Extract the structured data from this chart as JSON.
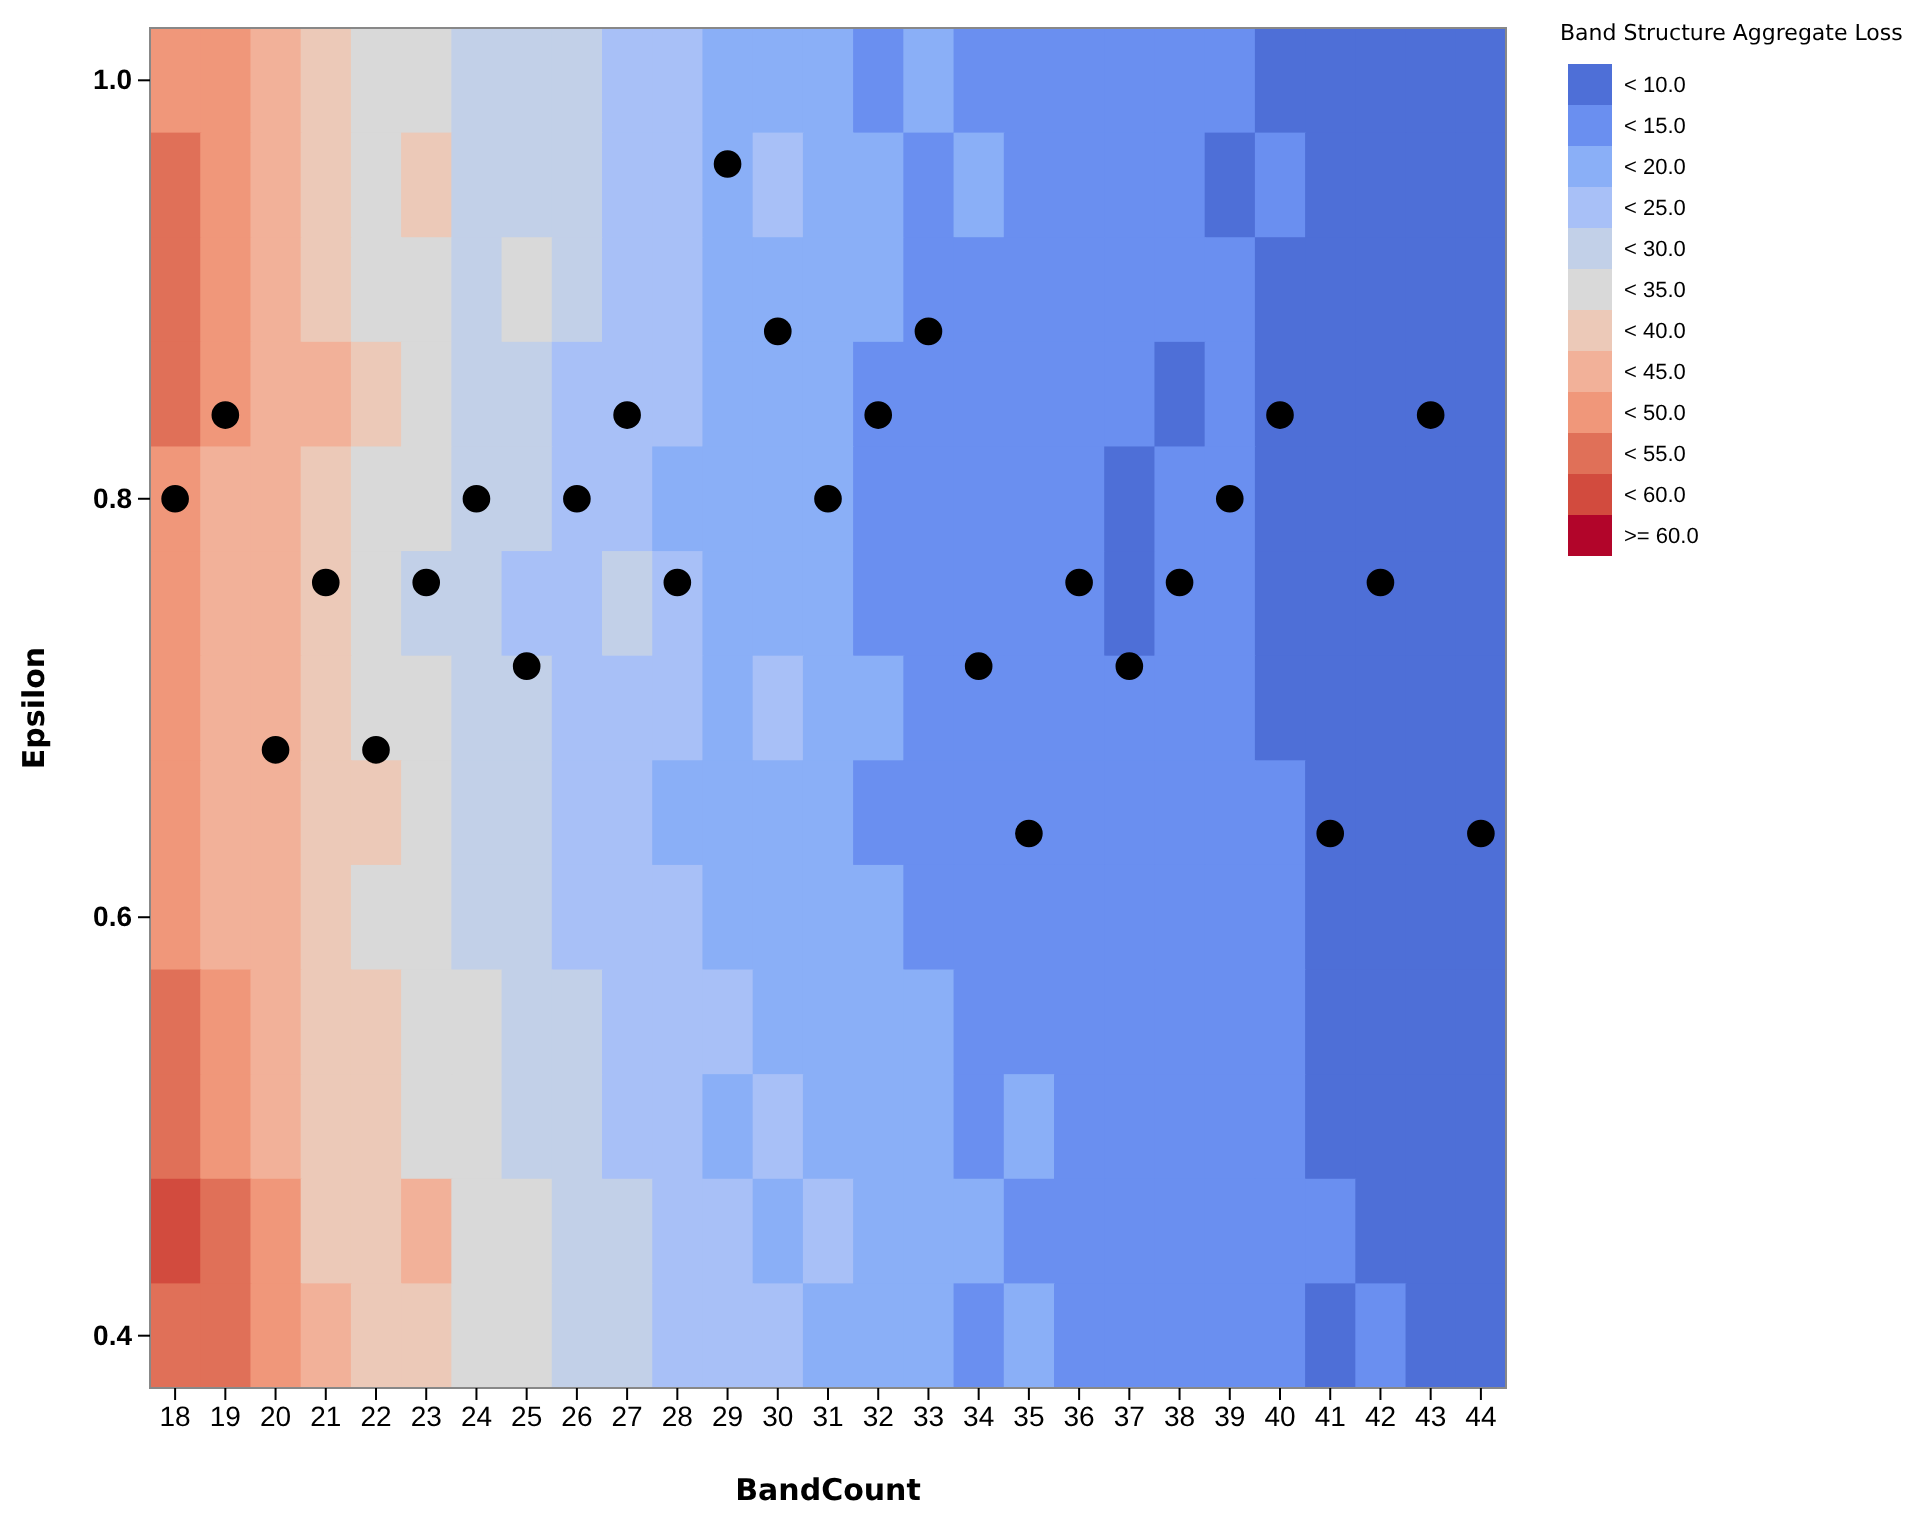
{
  "chart_data": {
    "type": "heatmap",
    "xlabel": "BandCount",
    "ylabel": "Epsilon",
    "legend_title": "Band Structure Aggregate Loss",
    "categories": [
      "18",
      "19",
      "20",
      "21",
      "22",
      "23",
      "24",
      "25",
      "26",
      "27",
      "28",
      "29",
      "30",
      "31",
      "32",
      "33",
      "34",
      "35",
      "36",
      "37",
      "38",
      "39",
      "40",
      "41",
      "42",
      "43",
      "44"
    ],
    "ylim": [
      0.375,
      1.025
    ],
    "yticks": [
      {
        "value": 0.4,
        "label": "0.4"
      },
      {
        "value": 0.6,
        "label": "0.6"
      },
      {
        "value": 0.8,
        "label": "0.8"
      },
      {
        "value": 1.0,
        "label": "1.0"
      }
    ],
    "clim": [
      5,
      65
    ],
    "cticks": [
      {
        "value": 7.5,
        "label": "< 10.0"
      },
      {
        "value": 12.5,
        "label": "< 15.0"
      },
      {
        "value": 17.5,
        "label": "< 20.0"
      },
      {
        "value": 22.5,
        "label": "< 25.0"
      },
      {
        "value": 27.5,
        "label": "< 30.0"
      },
      {
        "value": 32.5,
        "label": "< 35.0"
      },
      {
        "value": 37.5,
        "label": "< 40.0"
      },
      {
        "value": 42.5,
        "label": "< 45.0"
      },
      {
        "value": 47.5,
        "label": "< 50.0"
      },
      {
        "value": 52.5,
        "label": "< 55.0"
      },
      {
        "value": 57.5,
        "label": "< 60.0"
      },
      {
        "value": 62.5,
        "label": ">= 60.0"
      }
    ],
    "colors": [
      "#4e6fd7",
      "#6a8ff0",
      "#8aaff7",
      "#a8c0f7",
      "#c2d0e8",
      "#d9d9d9",
      "#ecc9b8",
      "#f2b199",
      "#f0977a",
      "#e07058",
      "#d24b3e",
      "#b2052a"
    ],
    "cells": [
      [
        47.5,
        47.5,
        42.5,
        37.5,
        32.5,
        32.5,
        27.5,
        27.5,
        27.5,
        22.5,
        22.5,
        17.5,
        17.5,
        17.5,
        12.5,
        17.5,
        12.5,
        12.5,
        12.5,
        12.5,
        12.5,
        12.5,
        7.5,
        7.5,
        7.5,
        7.5,
        7.5
      ],
      [
        52.5,
        47.5,
        42.5,
        37.5,
        32.5,
        37.5,
        27.5,
        27.5,
        27.5,
        22.5,
        22.5,
        17.5,
        22.5,
        17.5,
        17.5,
        12.5,
        17.5,
        12.5,
        12.5,
        12.5,
        12.5,
        7.5,
        12.5,
        7.5,
        7.5,
        7.5,
        7.5
      ],
      [
        52.5,
        47.5,
        42.5,
        37.5,
        32.5,
        32.5,
        27.5,
        32.5,
        27.5,
        22.5,
        22.5,
        17.5,
        17.5,
        17.5,
        17.5,
        12.5,
        12.5,
        12.5,
        12.5,
        12.5,
        12.5,
        12.5,
        7.5,
        7.5,
        7.5,
        7.5,
        7.5
      ],
      [
        52.5,
        47.5,
        42.5,
        42.5,
        37.5,
        32.5,
        27.5,
        27.5,
        22.5,
        22.5,
        22.5,
        17.5,
        17.5,
        17.5,
        12.5,
        12.5,
        12.5,
        12.5,
        12.5,
        12.5,
        7.5,
        12.5,
        7.5,
        7.5,
        7.5,
        7.5,
        7.5
      ],
      [
        47.5,
        42.5,
        42.5,
        37.5,
        32.5,
        32.5,
        27.5,
        27.5,
        22.5,
        22.5,
        17.5,
        17.5,
        17.5,
        17.5,
        12.5,
        12.5,
        12.5,
        12.5,
        12.5,
        7.5,
        12.5,
        12.5,
        7.5,
        7.5,
        7.5,
        7.5,
        7.5
      ],
      [
        47.5,
        42.5,
        42.5,
        37.5,
        32.5,
        27.5,
        27.5,
        22.5,
        22.5,
        27.5,
        22.5,
        17.5,
        17.5,
        17.5,
        12.5,
        12.5,
        12.5,
        12.5,
        12.5,
        7.5,
        12.5,
        12.5,
        7.5,
        7.5,
        7.5,
        7.5,
        7.5
      ],
      [
        47.5,
        42.5,
        42.5,
        37.5,
        32.5,
        32.5,
        27.5,
        27.5,
        22.5,
        22.5,
        22.5,
        17.5,
        22.5,
        17.5,
        17.5,
        12.5,
        12.5,
        12.5,
        12.5,
        12.5,
        12.5,
        12.5,
        7.5,
        7.5,
        7.5,
        7.5,
        7.5
      ],
      [
        47.5,
        42.5,
        42.5,
        37.5,
        37.5,
        32.5,
        27.5,
        27.5,
        22.5,
        22.5,
        17.5,
        17.5,
        17.5,
        17.5,
        12.5,
        12.5,
        12.5,
        12.5,
        12.5,
        12.5,
        12.5,
        12.5,
        12.5,
        7.5,
        7.5,
        7.5,
        7.5
      ],
      [
        47.5,
        42.5,
        42.5,
        37.5,
        32.5,
        32.5,
        27.5,
        27.5,
        22.5,
        22.5,
        22.5,
        17.5,
        17.5,
        17.5,
        17.5,
        12.5,
        12.5,
        12.5,
        12.5,
        12.5,
        12.5,
        12.5,
        12.5,
        7.5,
        7.5,
        7.5,
        7.5
      ],
      [
        52.5,
        47.5,
        42.5,
        37.5,
        37.5,
        32.5,
        32.5,
        27.5,
        27.5,
        22.5,
        22.5,
        22.5,
        17.5,
        17.5,
        17.5,
        17.5,
        12.5,
        12.5,
        12.5,
        12.5,
        12.5,
        12.5,
        12.5,
        7.5,
        7.5,
        7.5,
        7.5
      ],
      [
        52.5,
        47.5,
        42.5,
        37.5,
        37.5,
        32.5,
        32.5,
        27.5,
        27.5,
        22.5,
        22.5,
        17.5,
        22.5,
        17.5,
        17.5,
        17.5,
        12.5,
        17.5,
        12.5,
        12.5,
        12.5,
        12.5,
        12.5,
        7.5,
        7.5,
        7.5,
        7.5
      ],
      [
        57.5,
        52.5,
        47.5,
        37.5,
        37.5,
        42.5,
        32.5,
        32.5,
        27.5,
        27.5,
        22.5,
        22.5,
        17.5,
        22.5,
        17.5,
        17.5,
        17.5,
        12.5,
        12.5,
        12.5,
        12.5,
        12.5,
        12.5,
        12.5,
        7.5,
        7.5,
        7.5
      ],
      [
        52.5,
        52.5,
        47.5,
        42.5,
        37.5,
        37.5,
        32.5,
        32.5,
        27.5,
        27.5,
        22.5,
        22.5,
        22.5,
        17.5,
        17.5,
        17.5,
        12.5,
        17.5,
        12.5,
        12.5,
        12.5,
        12.5,
        12.5,
        7.5,
        12.5,
        7.5,
        7.5
      ]
    ],
    "series": [
      {
        "type": "scatter",
        "color": "#000000",
        "marker": "circle",
        "x": [
          "18",
          "19",
          "20",
          "21",
          "22",
          "23",
          "24",
          "25",
          "26",
          "27",
          "28",
          "29",
          "30",
          "31",
          "32",
          "33",
          "34",
          "35",
          "36",
          "37",
          "38",
          "39",
          "40",
          "41",
          "42",
          "43",
          "44"
        ],
        "values": [
          0.8,
          0.84,
          0.68,
          0.76,
          0.68,
          0.76,
          0.8,
          0.72,
          0.8,
          0.84,
          0.76,
          0.96,
          0.88,
          0.8,
          0.84,
          0.88,
          0.72,
          0.64,
          0.76,
          0.72,
          0.76,
          0.8,
          0.84,
          0.64,
          0.76,
          0.84,
          0.64
        ]
      }
    ]
  }
}
